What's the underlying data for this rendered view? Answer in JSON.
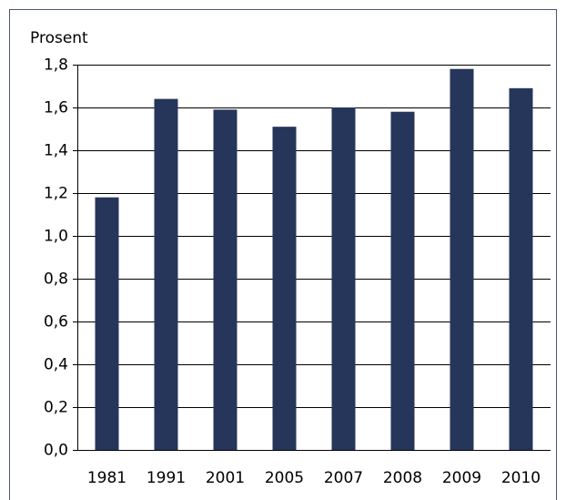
{
  "chart_data": {
    "type": "bar",
    "y_label": "Prosent",
    "categories": [
      "1981",
      "1991",
      "2001",
      "2005",
      "2007",
      "2008",
      "2009",
      "2010"
    ],
    "values": [
      1.18,
      1.64,
      1.59,
      1.51,
      1.6,
      1.58,
      1.78,
      1.69
    ],
    "color": "#26355a",
    "ylim": [
      0,
      1.8
    ],
    "yticks": [
      {
        "value": 0,
        "label": "0,0"
      },
      {
        "value": 0.2,
        "label": "0,2"
      },
      {
        "value": 0.4,
        "label": "0,4"
      },
      {
        "value": 0.6,
        "label": "0,6"
      },
      {
        "value": 0.8,
        "label": "0,8"
      },
      {
        "value": 1.0,
        "label": "1,0"
      },
      {
        "value": 1.2,
        "label": "1,2"
      },
      {
        "value": 1.4,
        "label": "1,4"
      },
      {
        "value": 1.6,
        "label": "1,6"
      },
      {
        "value": 1.8,
        "label": "1,8"
      }
    ],
    "grid": true
  }
}
